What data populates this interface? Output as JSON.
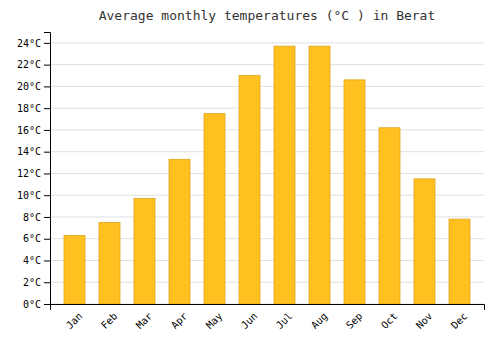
{
  "chart_data": {
    "type": "bar",
    "title": "Average monthly temperatures (°C ) in Berat",
    "categories": [
      "Jan",
      "Feb",
      "Mar",
      "Apr",
      "May",
      "Jun",
      "Jul",
      "Aug",
      "Sep",
      "Oct",
      "Nov",
      "Dec"
    ],
    "values": [
      6.3,
      7.5,
      9.7,
      13.3,
      17.5,
      21.0,
      23.7,
      23.7,
      20.6,
      16.2,
      11.5,
      7.8
    ],
    "color": "#FFC020",
    "ylim": [
      0,
      25
    ],
    "yticks": [
      {
        "value": 0,
        "label": "0°C"
      },
      {
        "value": 2,
        "label": "2°C"
      },
      {
        "value": 4,
        "label": "4°C"
      },
      {
        "value": 6,
        "label": "6°C"
      },
      {
        "value": 8,
        "label": "8°C"
      },
      {
        "value": 10,
        "label": "10°C"
      },
      {
        "value": 12,
        "label": "12°C"
      },
      {
        "value": 14,
        "label": "14°C"
      },
      {
        "value": 16,
        "label": "16°C"
      },
      {
        "value": 18,
        "label": "18°C"
      },
      {
        "value": 20,
        "label": "20°C"
      },
      {
        "value": 22,
        "label": "22°C"
      },
      {
        "value": 24,
        "label": "24°C"
      }
    ],
    "grid": true
  }
}
